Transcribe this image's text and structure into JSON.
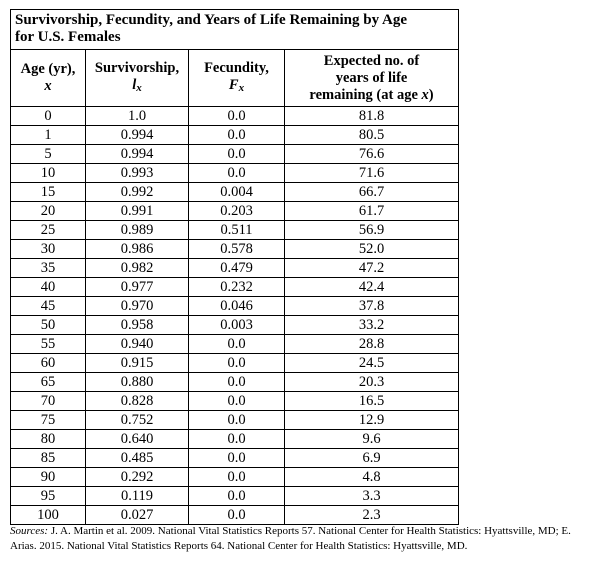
{
  "title_line1": "Survivorship, Fecundity, and Years of Life Remaining by Age",
  "title_line2": "for U.S. Females",
  "headers": {
    "age_l1": "Age (yr),",
    "age_l2": "x",
    "surv_l1": "Survivorship,",
    "surv_sym": "l",
    "surv_sub": "x",
    "fec_l1": "Fecundity,",
    "fec_sym": "F",
    "fec_sub": "x",
    "exp_l1": "Expected no. of",
    "exp_l2": "years of life",
    "exp_l3_pre": "remaining (at age ",
    "exp_l3_var": "x",
    "exp_l3_post": ")"
  },
  "rows": [
    [
      "0",
      "1.0",
      "0.0",
      "81.8"
    ],
    [
      "1",
      "0.994",
      "0.0",
      "80.5"
    ],
    [
      "5",
      "0.994",
      "0.0",
      "76.6"
    ],
    [
      "10",
      "0.993",
      "0.0",
      "71.6"
    ],
    [
      "15",
      "0.992",
      "0.004",
      "66.7"
    ],
    [
      "20",
      "0.991",
      "0.203",
      "61.7"
    ],
    [
      "25",
      "0.989",
      "0.511",
      "56.9"
    ],
    [
      "30",
      "0.986",
      "0.578",
      "52.0"
    ],
    [
      "35",
      "0.982",
      "0.479",
      "47.2"
    ],
    [
      "40",
      "0.977",
      "0.232",
      "42.4"
    ],
    [
      "45",
      "0.970",
      "0.046",
      "37.8"
    ],
    [
      "50",
      "0.958",
      "0.003",
      "33.2"
    ],
    [
      "55",
      "0.940",
      "0.0",
      "28.8"
    ],
    [
      "60",
      "0.915",
      "0.0",
      "24.5"
    ],
    [
      "65",
      "0.880",
      "0.0",
      "20.3"
    ],
    [
      "70",
      "0.828",
      "0.0",
      "16.5"
    ],
    [
      "75",
      "0.752",
      "0.0",
      "12.9"
    ],
    [
      "80",
      "0.640",
      "0.0",
      "9.6"
    ],
    [
      "85",
      "0.485",
      "0.0",
      "6.9"
    ],
    [
      "90",
      "0.292",
      "0.0",
      "4.8"
    ],
    [
      "95",
      "0.119",
      "0.0",
      "3.3"
    ],
    [
      "100",
      "0.027",
      "0.0",
      "2.3"
    ]
  ],
  "sources_label": "Sources:",
  "sources_text": " J. A. Martin et al. 2009. National Vital Statistics Reports 57. National Center for Health Statistics: Hyattsville, MD; E. Arias. 2015. National Vital Statistics Reports 64. National Center for Health Statistics: Hyattsville, MD."
}
